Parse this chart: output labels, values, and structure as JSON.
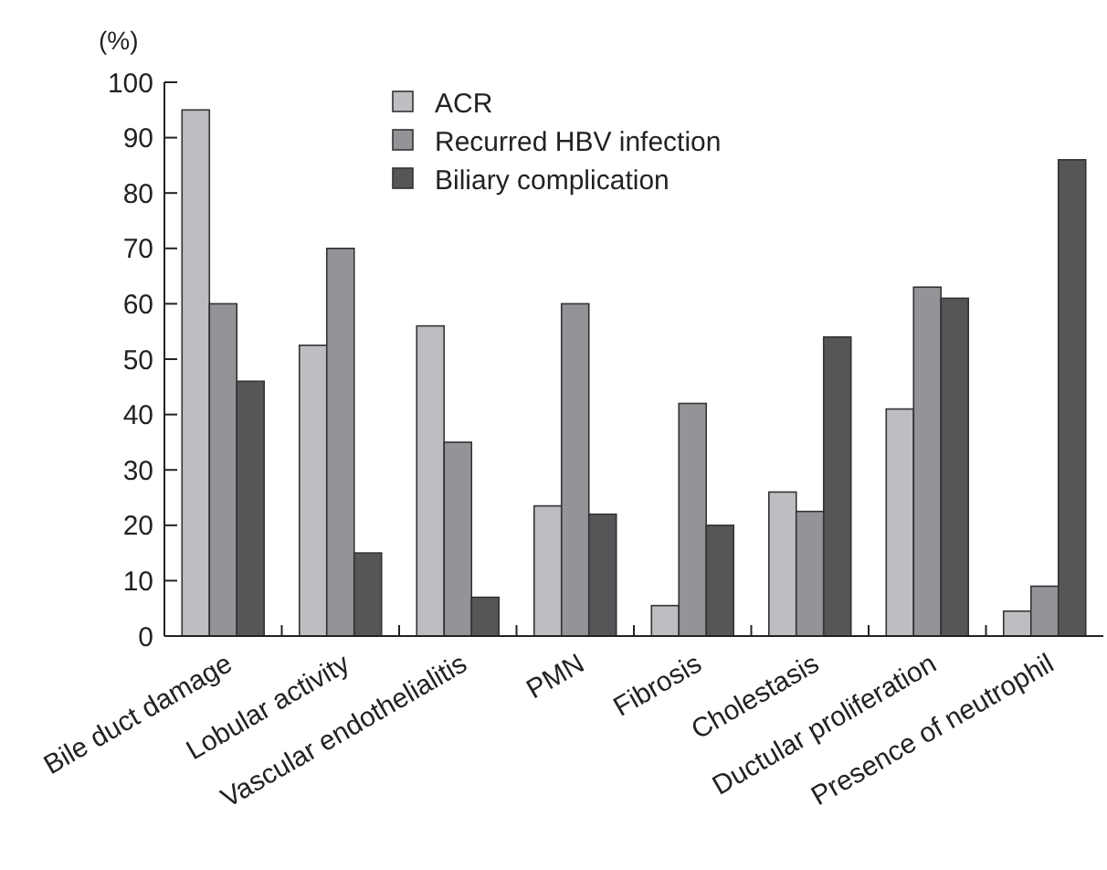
{
  "chart_data": {
    "type": "bar",
    "ylabel": "(%)",
    "categories": [
      "Bile duct damage",
      "Lobular activity",
      "Vascular endothelialitis",
      "PMN",
      "Fibrosis",
      "Cholestasis",
      "Ductular proliferation",
      "Presence of neutrophil"
    ],
    "series": [
      {
        "name": "ACR",
        "color": "#bdbec2",
        "values": [
          95,
          52.5,
          56,
          23.5,
          5.5,
          26,
          41,
          4.5
        ]
      },
      {
        "name": "Recurred HBV infection",
        "color": "#939497",
        "values": [
          60,
          70,
          35,
          60,
          42,
          22.5,
          63,
          9
        ]
      },
      {
        "name": "Biliary complication",
        "color": "#555658",
        "values": [
          46,
          15,
          7,
          22,
          20,
          54,
          61,
          86
        ]
      }
    ],
    "ylim": [
      0,
      100
    ],
    "yticks": [
      0,
      10,
      20,
      30,
      40,
      50,
      60,
      70,
      80,
      90,
      100
    ],
    "grid": false,
    "legend": "top left"
  }
}
